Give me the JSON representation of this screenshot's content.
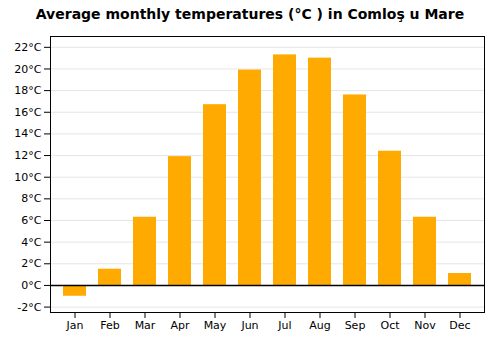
{
  "chart_data": {
    "type": "bar",
    "title": "Average monthly temperatures (°C ) in Comloş u Mare",
    "categories": [
      "Jan",
      "Feb",
      "Mar",
      "Apr",
      "May",
      "Jun",
      "Jul",
      "Aug",
      "Sep",
      "Oct",
      "Nov",
      "Dec"
    ],
    "values": [
      -1.0,
      1.5,
      6.3,
      11.9,
      16.7,
      19.9,
      21.3,
      21.0,
      17.6,
      12.4,
      6.3,
      1.1
    ],
    "color": "#FFAA00",
    "ylim": [
      -2.5,
      23
    ],
    "yticks": [
      {
        "value": -2,
        "label": "-2°C"
      },
      {
        "value": 0,
        "label": "0°C"
      },
      {
        "value": 2,
        "label": "2°C"
      },
      {
        "value": 4,
        "label": "4°C"
      },
      {
        "value": 6,
        "label": "6°C"
      },
      {
        "value": 8,
        "label": "8°C"
      },
      {
        "value": 10,
        "label": "10°C"
      },
      {
        "value": 12,
        "label": "12°C"
      },
      {
        "value": 14,
        "label": "14°C"
      },
      {
        "value": 16,
        "label": "16°C"
      },
      {
        "value": 18,
        "label": "18°C"
      },
      {
        "value": 20,
        "label": "20°C"
      },
      {
        "value": 22,
        "label": "22°C"
      }
    ],
    "grid": true
  }
}
